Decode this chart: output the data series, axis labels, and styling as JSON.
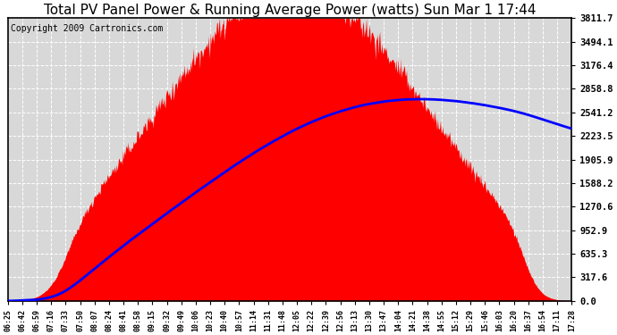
{
  "title": "Total PV Panel Power & Running Average Power (watts) Sun Mar 1 17:44",
  "copyright": "Copyright 2009 Cartronics.com",
  "y_max": 3811.7,
  "y_ticks": [
    0.0,
    317.6,
    635.3,
    952.9,
    1270.6,
    1588.2,
    1905.9,
    2223.5,
    2541.2,
    2858.8,
    3176.4,
    3494.1,
    3811.7
  ],
  "x_labels": [
    "06:25",
    "06:42",
    "06:59",
    "07:16",
    "07:33",
    "07:50",
    "08:07",
    "08:24",
    "08:41",
    "08:58",
    "09:15",
    "09:32",
    "09:49",
    "10:06",
    "10:23",
    "10:40",
    "10:57",
    "11:14",
    "11:31",
    "11:48",
    "12:05",
    "12:22",
    "12:39",
    "12:56",
    "13:13",
    "13:30",
    "13:47",
    "14:04",
    "14:21",
    "14:38",
    "14:55",
    "15:12",
    "15:29",
    "15:46",
    "16:03",
    "16:20",
    "16:37",
    "16:54",
    "17:11",
    "17:28"
  ],
  "bg_color": "#ffffff",
  "plot_bg_color": "#d8d8d8",
  "grid_color": "#ffffff",
  "pv_color": "#ff0000",
  "avg_color": "#0000ff",
  "title_fontsize": 11,
  "copyright_fontsize": 7
}
